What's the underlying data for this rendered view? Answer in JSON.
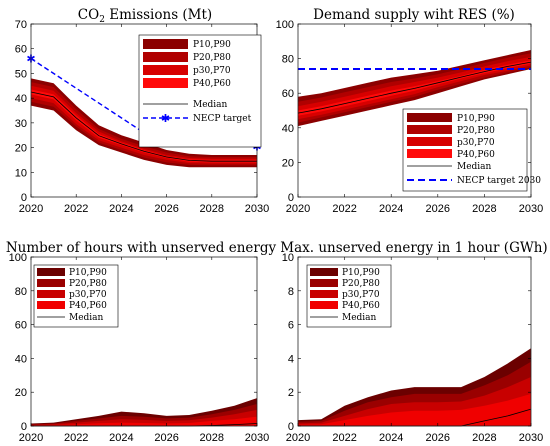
{
  "chart_data": [
    {
      "type": "area",
      "title_main": "CO",
      "title_sub": "2",
      "title_rest": " Emissions (Mt)",
      "x": [
        2020,
        2021,
        2022,
        2023,
        2024,
        2025,
        2026,
        2027,
        2028,
        2029,
        2030
      ],
      "xticks": [
        2020,
        2022,
        2024,
        2026,
        2028,
        2030
      ],
      "yticks": [
        0,
        10,
        20,
        30,
        40,
        50,
        60,
        70
      ],
      "xlim": [
        2020,
        2030
      ],
      "ylim": [
        0,
        70
      ],
      "bands": [
        {
          "name": "P10,P90",
          "color": "#8b0000",
          "lower": [
            37,
            35,
            27,
            21,
            18,
            15,
            13,
            12,
            12,
            12,
            12
          ],
          "upper": [
            48,
            46,
            37,
            29,
            25,
            22,
            19,
            17.5,
            17,
            17,
            17
          ]
        },
        {
          "name": "P20,P80",
          "color": "#b00000",
          "lower": [
            38.5,
            36.5,
            28.5,
            22,
            19,
            16,
            14,
            13,
            12.8,
            12.8,
            12.8
          ],
          "upper": [
            46.5,
            44.5,
            35.5,
            27.5,
            23.5,
            20.5,
            18,
            16.5,
            16.2,
            16.2,
            16.2
          ]
        },
        {
          "name": "p30,P70",
          "color": "#d70000",
          "lower": [
            40,
            38,
            29.5,
            23,
            20,
            17,
            15,
            13.7,
            13.5,
            13.5,
            13.5
          ],
          "upper": [
            45,
            43,
            34,
            26.5,
            22.5,
            19.5,
            17,
            15.8,
            15.5,
            15.5,
            15.5
          ]
        },
        {
          "name": "P40,P60",
          "color": "#ff0a0a",
          "lower": [
            41.5,
            39.5,
            31,
            24,
            21,
            18,
            15.8,
            14.3,
            14,
            14,
            14
          ],
          "upper": [
            43.5,
            41.5,
            33,
            25.5,
            22,
            19,
            16.5,
            15.2,
            15,
            15,
            15
          ]
        }
      ],
      "median": {
        "name": "Median",
        "values": [
          42.5,
          40.5,
          32,
          24.8,
          21.5,
          18.5,
          16.2,
          14.8,
          14.5,
          14.5,
          14.5
        ]
      },
      "target": {
        "name": "NECP target",
        "x": [
          2020,
          2025,
          2030
        ],
        "values": [
          56,
          26,
          20.5
        ],
        "color": "#0000ff"
      }
    },
    {
      "type": "area",
      "title": "Demand supply wiht RES (%)",
      "x": [
        2020,
        2021,
        2022,
        2023,
        2024,
        2025,
        2026,
        2027,
        2028,
        2029,
        2030
      ],
      "xticks": [
        2020,
        2022,
        2024,
        2026,
        2028,
        2030
      ],
      "yticks": [
        0,
        20,
        40,
        60,
        80,
        100
      ],
      "xlim": [
        2020,
        2030
      ],
      "ylim": [
        0,
        100
      ],
      "bands": [
        {
          "name": "P10,P90",
          "color": "#8b0000",
          "lower": [
            41,
            44,
            47,
            50,
            53,
            56,
            60,
            64,
            68,
            71,
            74
          ],
          "upper": [
            58,
            60,
            63,
            66,
            69,
            71,
            73,
            76,
            79,
            82,
            85
          ]
        },
        {
          "name": "P20,P80",
          "color": "#b00000",
          "lower": [
            43,
            46,
            49,
            52,
            55,
            58,
            62,
            65.5,
            69,
            72,
            75
          ],
          "upper": [
            55,
            57.5,
            60.5,
            63.5,
            66.5,
            68.5,
            71,
            74,
            77.5,
            80.5,
            83
          ]
        },
        {
          "name": "p30,P70",
          "color": "#d70000",
          "lower": [
            45,
            47.5,
            50.5,
            53.5,
            56.5,
            59.5,
            63.5,
            67,
            70.5,
            73,
            76
          ],
          "upper": [
            52.5,
            55,
            58,
            61,
            64,
            66.5,
            69,
            72,
            75.5,
            78.5,
            81
          ]
        },
        {
          "name": "P40,P60",
          "color": "#ff0a0a",
          "lower": [
            47,
            49.5,
            52.5,
            55.5,
            58.5,
            61.5,
            65,
            68.5,
            71.5,
            74.5,
            77
          ],
          "upper": [
            50,
            52.5,
            55.5,
            58.5,
            61.5,
            64,
            67,
            70,
            73.5,
            76.5,
            79
          ]
        }
      ],
      "median": {
        "name": "Median",
        "values": [
          48.5,
          51,
          54,
          57,
          60,
          62.8,
          66,
          69.3,
          72.5,
          75.5,
          78
        ]
      },
      "target": {
        "name": "NECP target 2030",
        "x": [
          2020,
          2030
        ],
        "values": [
          74,
          74
        ],
        "color": "#0000ff"
      }
    },
    {
      "type": "area",
      "title": "Number of hours with unserved energy",
      "x": [
        2020,
        2021,
        2022,
        2023,
        2024,
        2025,
        2026,
        2027,
        2028,
        2029,
        2030
      ],
      "xticks": [
        2020,
        2022,
        2024,
        2026,
        2028,
        2030
      ],
      "yticks": [
        0,
        20,
        40,
        60,
        80,
        100
      ],
      "xlim": [
        2020,
        2030
      ],
      "ylim": [
        0,
        100
      ],
      "bands": [
        {
          "name": "P10,P90",
          "color": "#6b0000",
          "lower": [
            0,
            0,
            0,
            0,
            0,
            0,
            0,
            0,
            0,
            0,
            0
          ],
          "upper": [
            1.5,
            2,
            4,
            6,
            8.5,
            7.5,
            6,
            6.5,
            9,
            12,
            16.5
          ]
        },
        {
          "name": "P20,P80",
          "color": "#9a0000",
          "lower": [
            0,
            0,
            0,
            0,
            0,
            0,
            0,
            0,
            0,
            0,
            0
          ],
          "upper": [
            1,
            1.5,
            3,
            4.5,
            6,
            5.5,
            4.5,
            5,
            7,
            9.5,
            13
          ]
        },
        {
          "name": "p30,P70",
          "color": "#c80000",
          "lower": [
            0,
            0,
            0,
            0,
            0,
            0,
            0,
            0,
            0,
            0,
            0
          ],
          "upper": [
            0.6,
            1,
            2,
            3,
            4,
            3.6,
            3,
            3.4,
            5,
            7,
            9.5
          ]
        },
        {
          "name": "P40,P60",
          "color": "#f00000",
          "lower": [
            0,
            0,
            0,
            0,
            0,
            0,
            0,
            0,
            0,
            0,
            0
          ],
          "upper": [
            0.3,
            0.5,
            1,
            1.6,
            2,
            1.8,
            1.5,
            1.8,
            3,
            4,
            5.5
          ]
        }
      ],
      "median": {
        "name": "Median",
        "values": [
          0,
          0,
          0,
          0,
          0,
          0,
          0,
          0,
          0.3,
          0.8,
          1.5
        ]
      }
    },
    {
      "type": "area",
      "title": "Max. unserved energy in 1 hour (GWh)",
      "x": [
        2020,
        2021,
        2022,
        2023,
        2024,
        2025,
        2026,
        2027,
        2028,
        2029,
        2030
      ],
      "xticks": [
        2020,
        2022,
        2024,
        2026,
        2028,
        2030
      ],
      "yticks": [
        0,
        2,
        4,
        6,
        8,
        10
      ],
      "xlim": [
        2020,
        2030
      ],
      "ylim": [
        0,
        10
      ],
      "bands": [
        {
          "name": "P10,P90",
          "color": "#6b0000",
          "lower": [
            0,
            0,
            0,
            0,
            0,
            0,
            0,
            0,
            0,
            0,
            0
          ],
          "upper": [
            0.35,
            0.4,
            1.2,
            1.7,
            2.1,
            2.3,
            2.3,
            2.3,
            2.9,
            3.7,
            4.6
          ]
        },
        {
          "name": "P20,P80",
          "color": "#9a0000",
          "lower": [
            0,
            0,
            0,
            0,
            0,
            0,
            0,
            0,
            0,
            0,
            0
          ],
          "upper": [
            0.25,
            0.3,
            0.9,
            1.4,
            1.7,
            1.9,
            1.9,
            1.9,
            2.4,
            3,
            3.8
          ]
        },
        {
          "name": "p30,P70",
          "color": "#c80000",
          "lower": [
            0,
            0,
            0,
            0,
            0,
            0,
            0,
            0,
            0,
            0,
            0
          ],
          "upper": [
            0.15,
            0.2,
            0.6,
            1,
            1.3,
            1.4,
            1.4,
            1.45,
            1.8,
            2.3,
            2.9
          ]
        },
        {
          "name": "P40,P60",
          "color": "#f00000",
          "lower": [
            0,
            0,
            0,
            0,
            0,
            0,
            0,
            0,
            0,
            0,
            0
          ],
          "upper": [
            0.08,
            0.1,
            0.35,
            0.6,
            0.8,
            0.9,
            0.9,
            0.95,
            1.2,
            1.5,
            1.9
          ]
        }
      ],
      "median": {
        "name": "Median",
        "values": [
          0,
          0,
          0,
          0,
          0,
          0,
          0,
          0,
          0.3,
          0.6,
          1
        ]
      }
    }
  ]
}
